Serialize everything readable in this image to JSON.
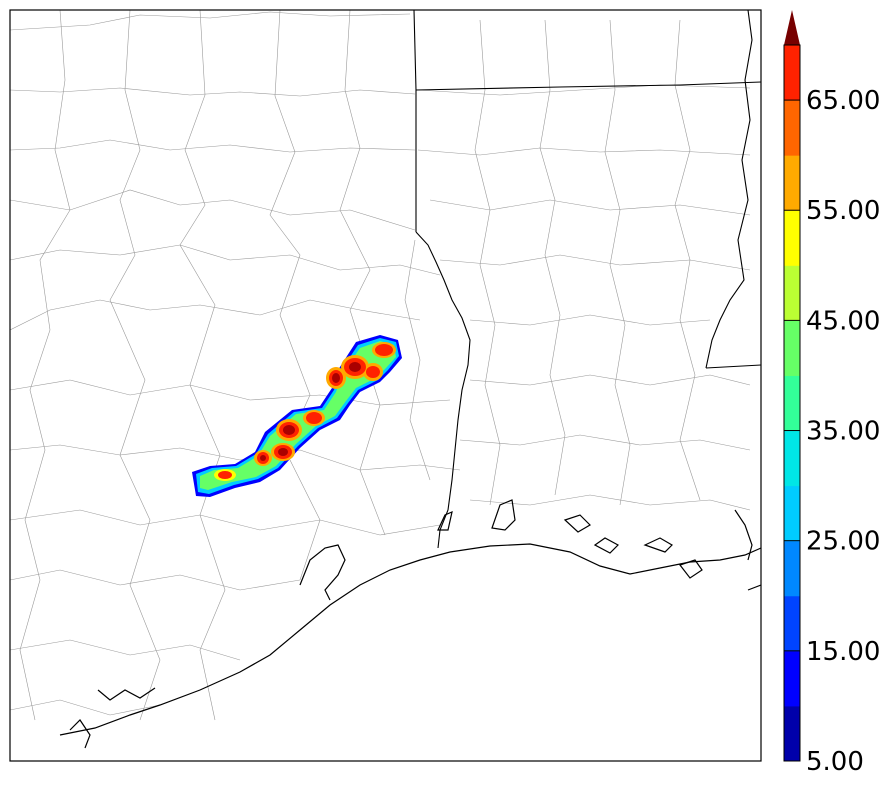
{
  "colorbar": {
    "labels": [
      "65.00",
      "55.00",
      "45.00",
      "35.00",
      "25.00",
      "15.00",
      "5.00"
    ],
    "bounds": [
      5,
      10,
      15,
      20,
      25,
      30,
      35,
      40,
      45,
      50,
      55,
      60,
      65,
      70
    ],
    "colors": [
      "#0000aa",
      "#0000ff",
      "#0044ff",
      "#0088ff",
      "#00ccff",
      "#00e6e6",
      "#33ff99",
      "#66ff66",
      "#bbff33",
      "#ffff00",
      "#ffaa00",
      "#ff6600",
      "#ff2200",
      "#aa0000"
    ],
    "extend": "max",
    "extend_color": "#770000"
  }
}
